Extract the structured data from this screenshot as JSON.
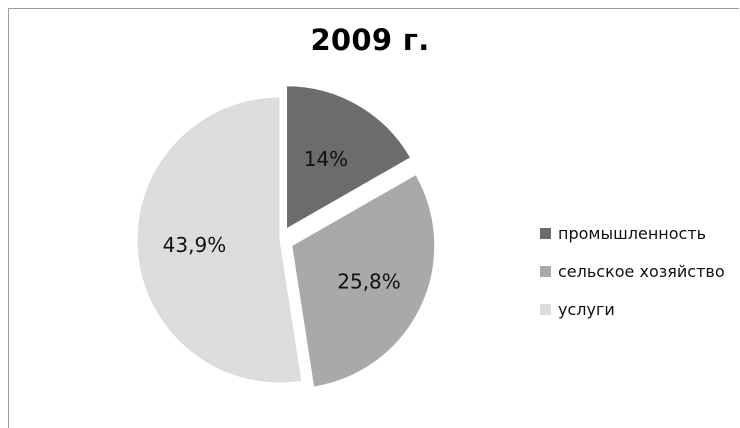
{
  "chart_data": {
    "type": "pie",
    "title": "2009 г.",
    "categories": [
      "промышленность",
      "сельское хозяйство",
      "услуги"
    ],
    "values": [
      14,
      25.8,
      43.9
    ],
    "labels": [
      "14%",
      "25,8%",
      "43,9%"
    ],
    "colors": [
      "#6c6c6c",
      "#a9a9a9",
      "#dcdcdc"
    ],
    "exploded": [
      true,
      true,
      false
    ],
    "legend_position": "right"
  }
}
